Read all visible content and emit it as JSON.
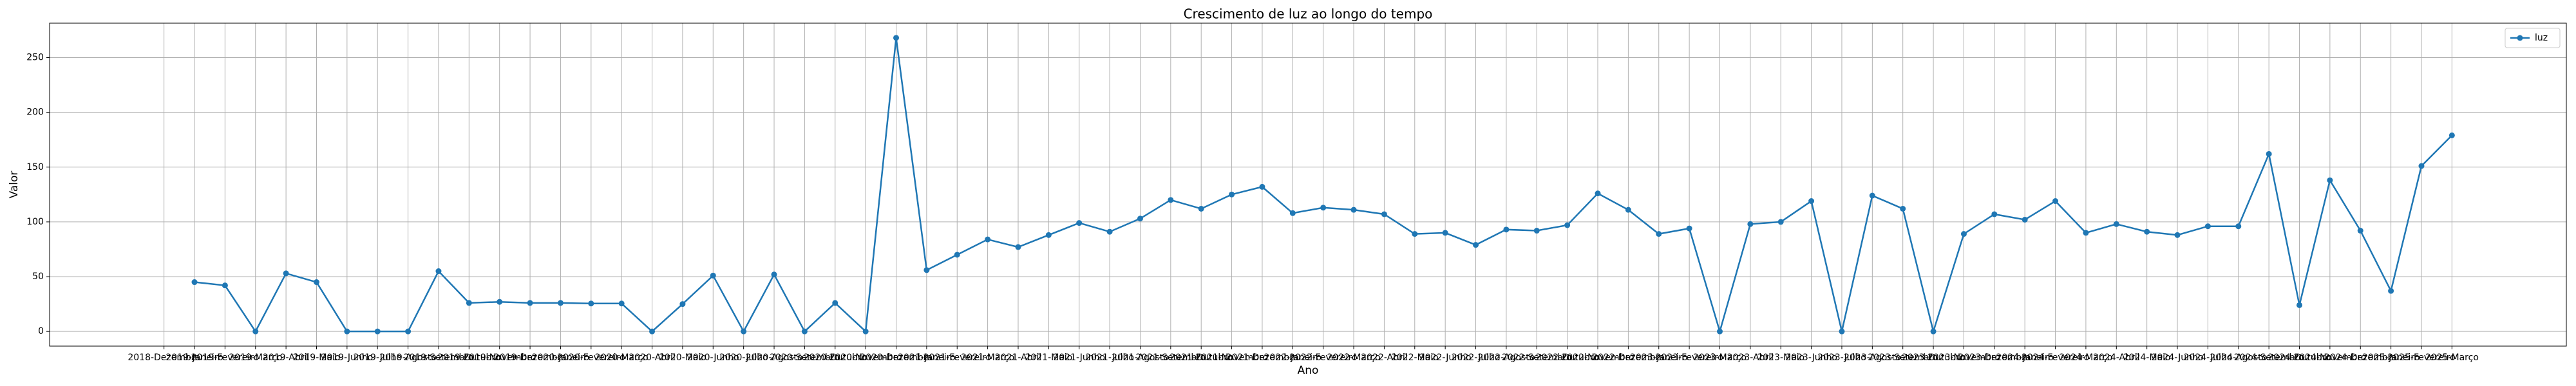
{
  "chart_data": {
    "type": "line",
    "title": "Crescimento de luz ao longo do tempo",
    "x_label": "Ano",
    "y_label": "Valor",
    "categories": [
      "2018-Dezembro",
      "2019-Janeiro",
      "2019-Fevereiro",
      "2019-Março",
      "2019-Abril",
      "2019-Maio",
      "2019-Junho",
      "2019-Julho",
      "2019-Agosto",
      "2019-Setembro",
      "2019-Outubro",
      "2019-Novembro",
      "2019-Dezembro",
      "2020-Janeiro",
      "2020-Fevereiro",
      "2020-Março",
      "2020-Abril",
      "2020-Maio",
      "2020-Junho",
      "2020-Julho",
      "2020-Agosto",
      "2020-Setembro",
      "2020-Outubro",
      "2020-Novembro",
      "2020-Dezembro",
      "2021-Janeiro",
      "2021-Fevereiro",
      "2021-Março",
      "2021-Abril",
      "2021-Maio",
      "2021-Junho",
      "2021-Julho",
      "2021-Agosto",
      "2021-Setembro",
      "2021-Outubro",
      "2021-Novembro",
      "2021-Dezembro",
      "2022-Janeiro",
      "2022-Fevereiro",
      "2022-Março",
      "2022-Abril",
      "2022-Maio",
      "2022-Junho",
      "2022-Julho",
      "2022-Agosto",
      "2022-Setembro",
      "2022-Outubro",
      "2022-Novembro",
      "2022-Dezembro",
      "2023-Janeiro",
      "2023-Fevereiro",
      "2023-Março",
      "2023-Abril",
      "2023-Maio",
      "2023-Junho",
      "2023-Julho",
      "2023-Agosto",
      "2023-Setembro",
      "2023-Outubro",
      "2023-Novembro",
      "2023-Dezembro",
      "2024-Janeiro",
      "2024-Fevereiro",
      "2024-Março",
      "2024-Abril",
      "2024-Maio",
      "2024-Junho",
      "2024-Julho",
      "2024-Agosto",
      "2024-Setembro",
      "2024-Outubro",
      "2024-Novembro",
      "2024-Dezembro",
      "2025-Janeiro",
      "2025-Fevereiro",
      "2025-Março"
    ],
    "series": [
      {
        "name": "luz",
        "color": "#1f77b4",
        "values": [
          null,
          45,
          42,
          0,
          53,
          45,
          0,
          0,
          0,
          55,
          26,
          27,
          26,
          26,
          25.5,
          25.5,
          0,
          25,
          51,
          0,
          52,
          0,
          26,
          0,
          268,
          56,
          70,
          84,
          77,
          88,
          99,
          91,
          103,
          120,
          112,
          125,
          132,
          108,
          113,
          111,
          107,
          89,
          90,
          79,
          93,
          92,
          97,
          126,
          111,
          89,
          94,
          0,
          98,
          100,
          119,
          0,
          124,
          112,
          0,
          89,
          107,
          102,
          119,
          90,
          98,
          91,
          88,
          96,
          96,
          162,
          24,
          138,
          92,
          37,
          151,
          179
        ]
      }
    ],
    "xlim": [
      -3.75,
      78.75
    ],
    "ylim": [
      -13.4,
      281.4
    ],
    "yticks": [
      0,
      50,
      100,
      150,
      200,
      250
    ],
    "grid": true,
    "legend": "upper right"
  }
}
